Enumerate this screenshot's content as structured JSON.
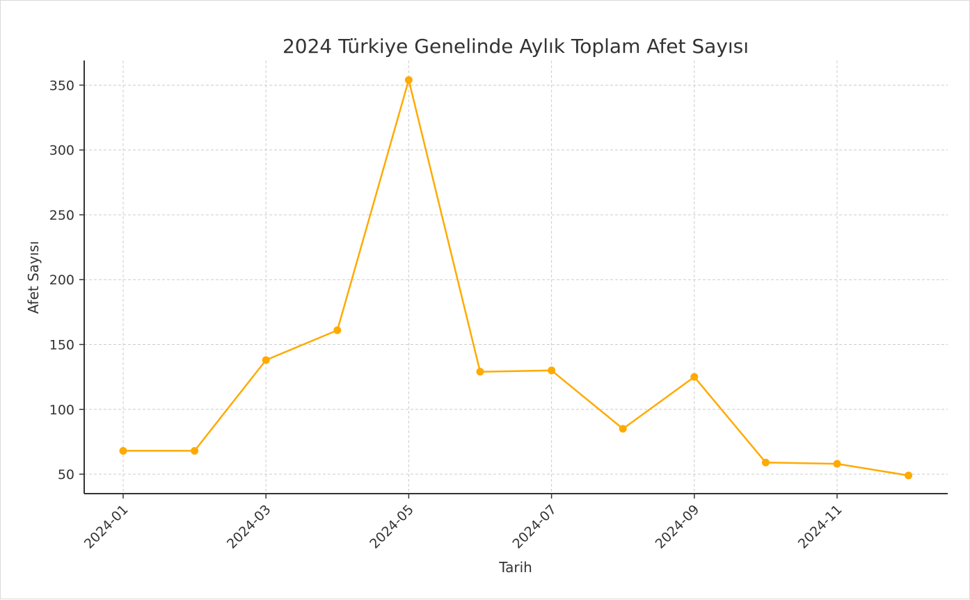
{
  "chart_data": {
    "type": "line",
    "title": "2024 Türkiye Genelinde Aylık Toplam Afet Sayısı",
    "xlabel": "Tarih",
    "ylabel": "Afet Sayısı",
    "x": [
      "2024-01",
      "2024-02",
      "2024-03",
      "2024-04",
      "2024-05",
      "2024-06",
      "2024-07",
      "2024-08",
      "2024-09",
      "2024-10",
      "2024-11",
      "2024-12"
    ],
    "values": [
      68,
      68,
      138,
      161,
      354,
      129,
      130,
      85,
      125,
      59,
      58,
      49
    ],
    "xticks": [
      "2024-01",
      "2024-03",
      "2024-05",
      "2024-07",
      "2024-09",
      "2024-11"
    ],
    "yticks": [
      50,
      100,
      150,
      200,
      250,
      300,
      350
    ],
    "ylim": [
      35,
      369
    ],
    "grid": true,
    "color": "#FFAA00",
    "axis_color": "#333333",
    "grid_color": "#cccccc"
  }
}
